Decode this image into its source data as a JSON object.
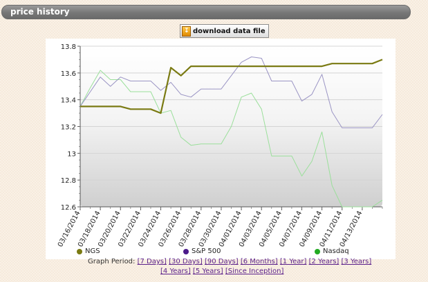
{
  "header": {
    "title": "price history"
  },
  "toolbar": {
    "download_label": "download data file"
  },
  "legend": [
    {
      "label": "NGS",
      "color": "#7a7a12"
    },
    {
      "label": "S&P 500",
      "color": "#4b1a8a"
    },
    {
      "label": "Nasdaq",
      "color": "#22aa22"
    }
  ],
  "period": {
    "label": "Graph Period:",
    "row1": [
      "[7 Days]",
      "[30 Days]",
      "[90 Days]",
      "[6 Months]",
      "[1 Year]",
      "[2 Years]",
      "[3 Years]"
    ],
    "row2": [
      "[4 Years]",
      "[5 Years]",
      "[Since Inception]"
    ]
  },
  "chart_data": {
    "type": "line",
    "title": "",
    "xlabel": "",
    "ylabel": "",
    "ylim": [
      12.6,
      13.8
    ],
    "yticks": [
      "13.8",
      "13.6",
      "13.4",
      "13.2",
      "13",
      "12.8",
      "12.6"
    ],
    "xticks": [
      "03/16/2014",
      "03/18/2014",
      "03/20/2014",
      "03/22/2014",
      "03/24/2014",
      "03/26/2014",
      "03/28/2014",
      "03/30/2014",
      "04/01/2014",
      "04/03/2014",
      "04/05/2014",
      "04/07/2014",
      "04/09/2014",
      "04/11/2014",
      "04/13/2014"
    ],
    "x": [
      "03/16/2014",
      "03/17/2014",
      "03/18/2014",
      "03/19/2014",
      "03/20/2014",
      "03/21/2014",
      "03/22/2014",
      "03/23/2014",
      "03/24/2014",
      "03/25/2014",
      "03/26/2014",
      "03/27/2014",
      "03/28/2014",
      "03/29/2014",
      "03/30/2014",
      "03/31/2014",
      "04/01/2014",
      "04/02/2014",
      "04/03/2014",
      "04/04/2014",
      "04/05/2014",
      "04/06/2014",
      "04/07/2014",
      "04/08/2014",
      "04/09/2014",
      "04/10/2014",
      "04/11/2014",
      "04/12/2014",
      "04/13/2014",
      "04/14/2014",
      "04/14/2014"
    ],
    "grid": true,
    "legend_position": "bottom",
    "series": [
      {
        "name": "NGS",
        "color": "#7a7a12",
        "values": [
          13.35,
          13.35,
          13.35,
          13.35,
          13.35,
          13.33,
          13.33,
          13.33,
          13.3,
          13.64,
          13.58,
          13.65,
          13.65,
          13.65,
          13.65,
          13.65,
          13.65,
          13.65,
          13.65,
          13.65,
          13.65,
          13.65,
          13.65,
          13.65,
          13.65,
          13.67,
          13.67,
          13.67,
          13.67,
          13.67,
          13.7
        ]
      },
      {
        "name": "S&P 500",
        "color": "#9a94c4",
        "values": [
          13.35,
          13.46,
          13.57,
          13.5,
          13.57,
          13.54,
          13.54,
          13.54,
          13.47,
          13.53,
          13.44,
          13.42,
          13.48,
          13.48,
          13.48,
          13.58,
          13.68,
          13.72,
          13.71,
          13.54,
          13.54,
          13.54,
          13.39,
          13.44,
          13.59,
          13.31,
          13.19,
          13.19,
          13.19,
          13.19,
          13.29
        ]
      },
      {
        "name": "Nasdaq",
        "color": "#9adf9a",
        "values": [
          13.35,
          13.49,
          13.62,
          13.55,
          13.55,
          13.46,
          13.46,
          13.46,
          13.3,
          13.32,
          13.12,
          13.06,
          13.07,
          13.07,
          13.07,
          13.2,
          13.42,
          13.45,
          13.33,
          12.98,
          12.98,
          12.98,
          12.83,
          12.94,
          13.16,
          12.76,
          12.58,
          12.58,
          12.58,
          12.58,
          12.65
        ]
      }
    ]
  }
}
